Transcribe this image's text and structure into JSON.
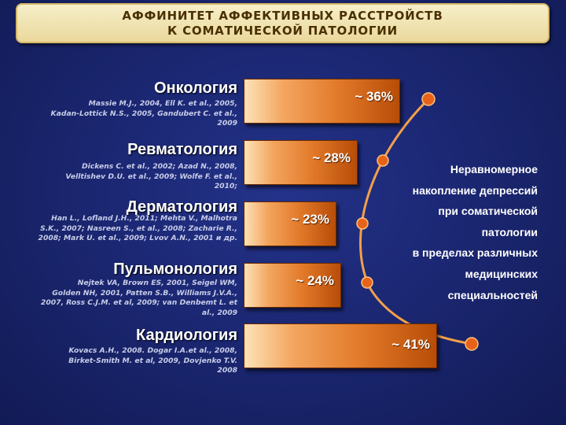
{
  "title": {
    "line1": "АФФИНИТЕТ АФФЕКТИВНЫХ РАССТРОЙСТВ",
    "line2": "К СОМАТИЧЕСКОЙ ПАТОЛОГИИ"
  },
  "specialties": [
    {
      "name": "Онкология",
      "refs": [
        "Massie M.J., 2004, Ell K. et al., 2005,",
        "Kadan-Lottick N.S., 2005, Gandubert C. et al.,",
        "2009"
      ],
      "value": "~ 36%"
    },
    {
      "name": "Ревматология",
      "refs": [
        "Dickens C. et al., 2002; Azad N., 2008,",
        "Velltishev D.U. et al., 2009; Wolfe F. et al.,",
        "2010;"
      ],
      "value": "~ 28%"
    },
    {
      "name": "Дерматология",
      "refs": [
        "Han L., Lofland J.H., 2011; Mehta V., Malhotra",
        "S.K., 2007; Nasreen S., et al., 2008; Zacharie R.,",
        "2008; Mark U. et al., 2009; Lvov A.N., 2001 и др."
      ],
      "value": "~ 23%"
    },
    {
      "name": "Пульмонология",
      "refs": [
        "Nejtek VA, Brown ES, 2001, Seigel WM,",
        "Golden NH, 2001, Patten S.B., Williams J.V.A.,",
        "2007, Ross C.J.M. et al, 2009; van Denbemt L. et",
        "al., 2009"
      ],
      "value": "~ 24%"
    },
    {
      "name": "Кардиология",
      "refs": [
        "Kovacs A.H., 2008. Dogar I.A.et al., 2008,",
        "Birket-Smith M. et al, 2009, Dovjenko T.V.",
        "2008"
      ],
      "value": "~ 41%"
    }
  ],
  "side_text": [
    "Неравномерное",
    "накопление депрессий",
    "при соматической",
    "патологии",
    "в пределах различных",
    "медицинских",
    "специальностей"
  ]
}
